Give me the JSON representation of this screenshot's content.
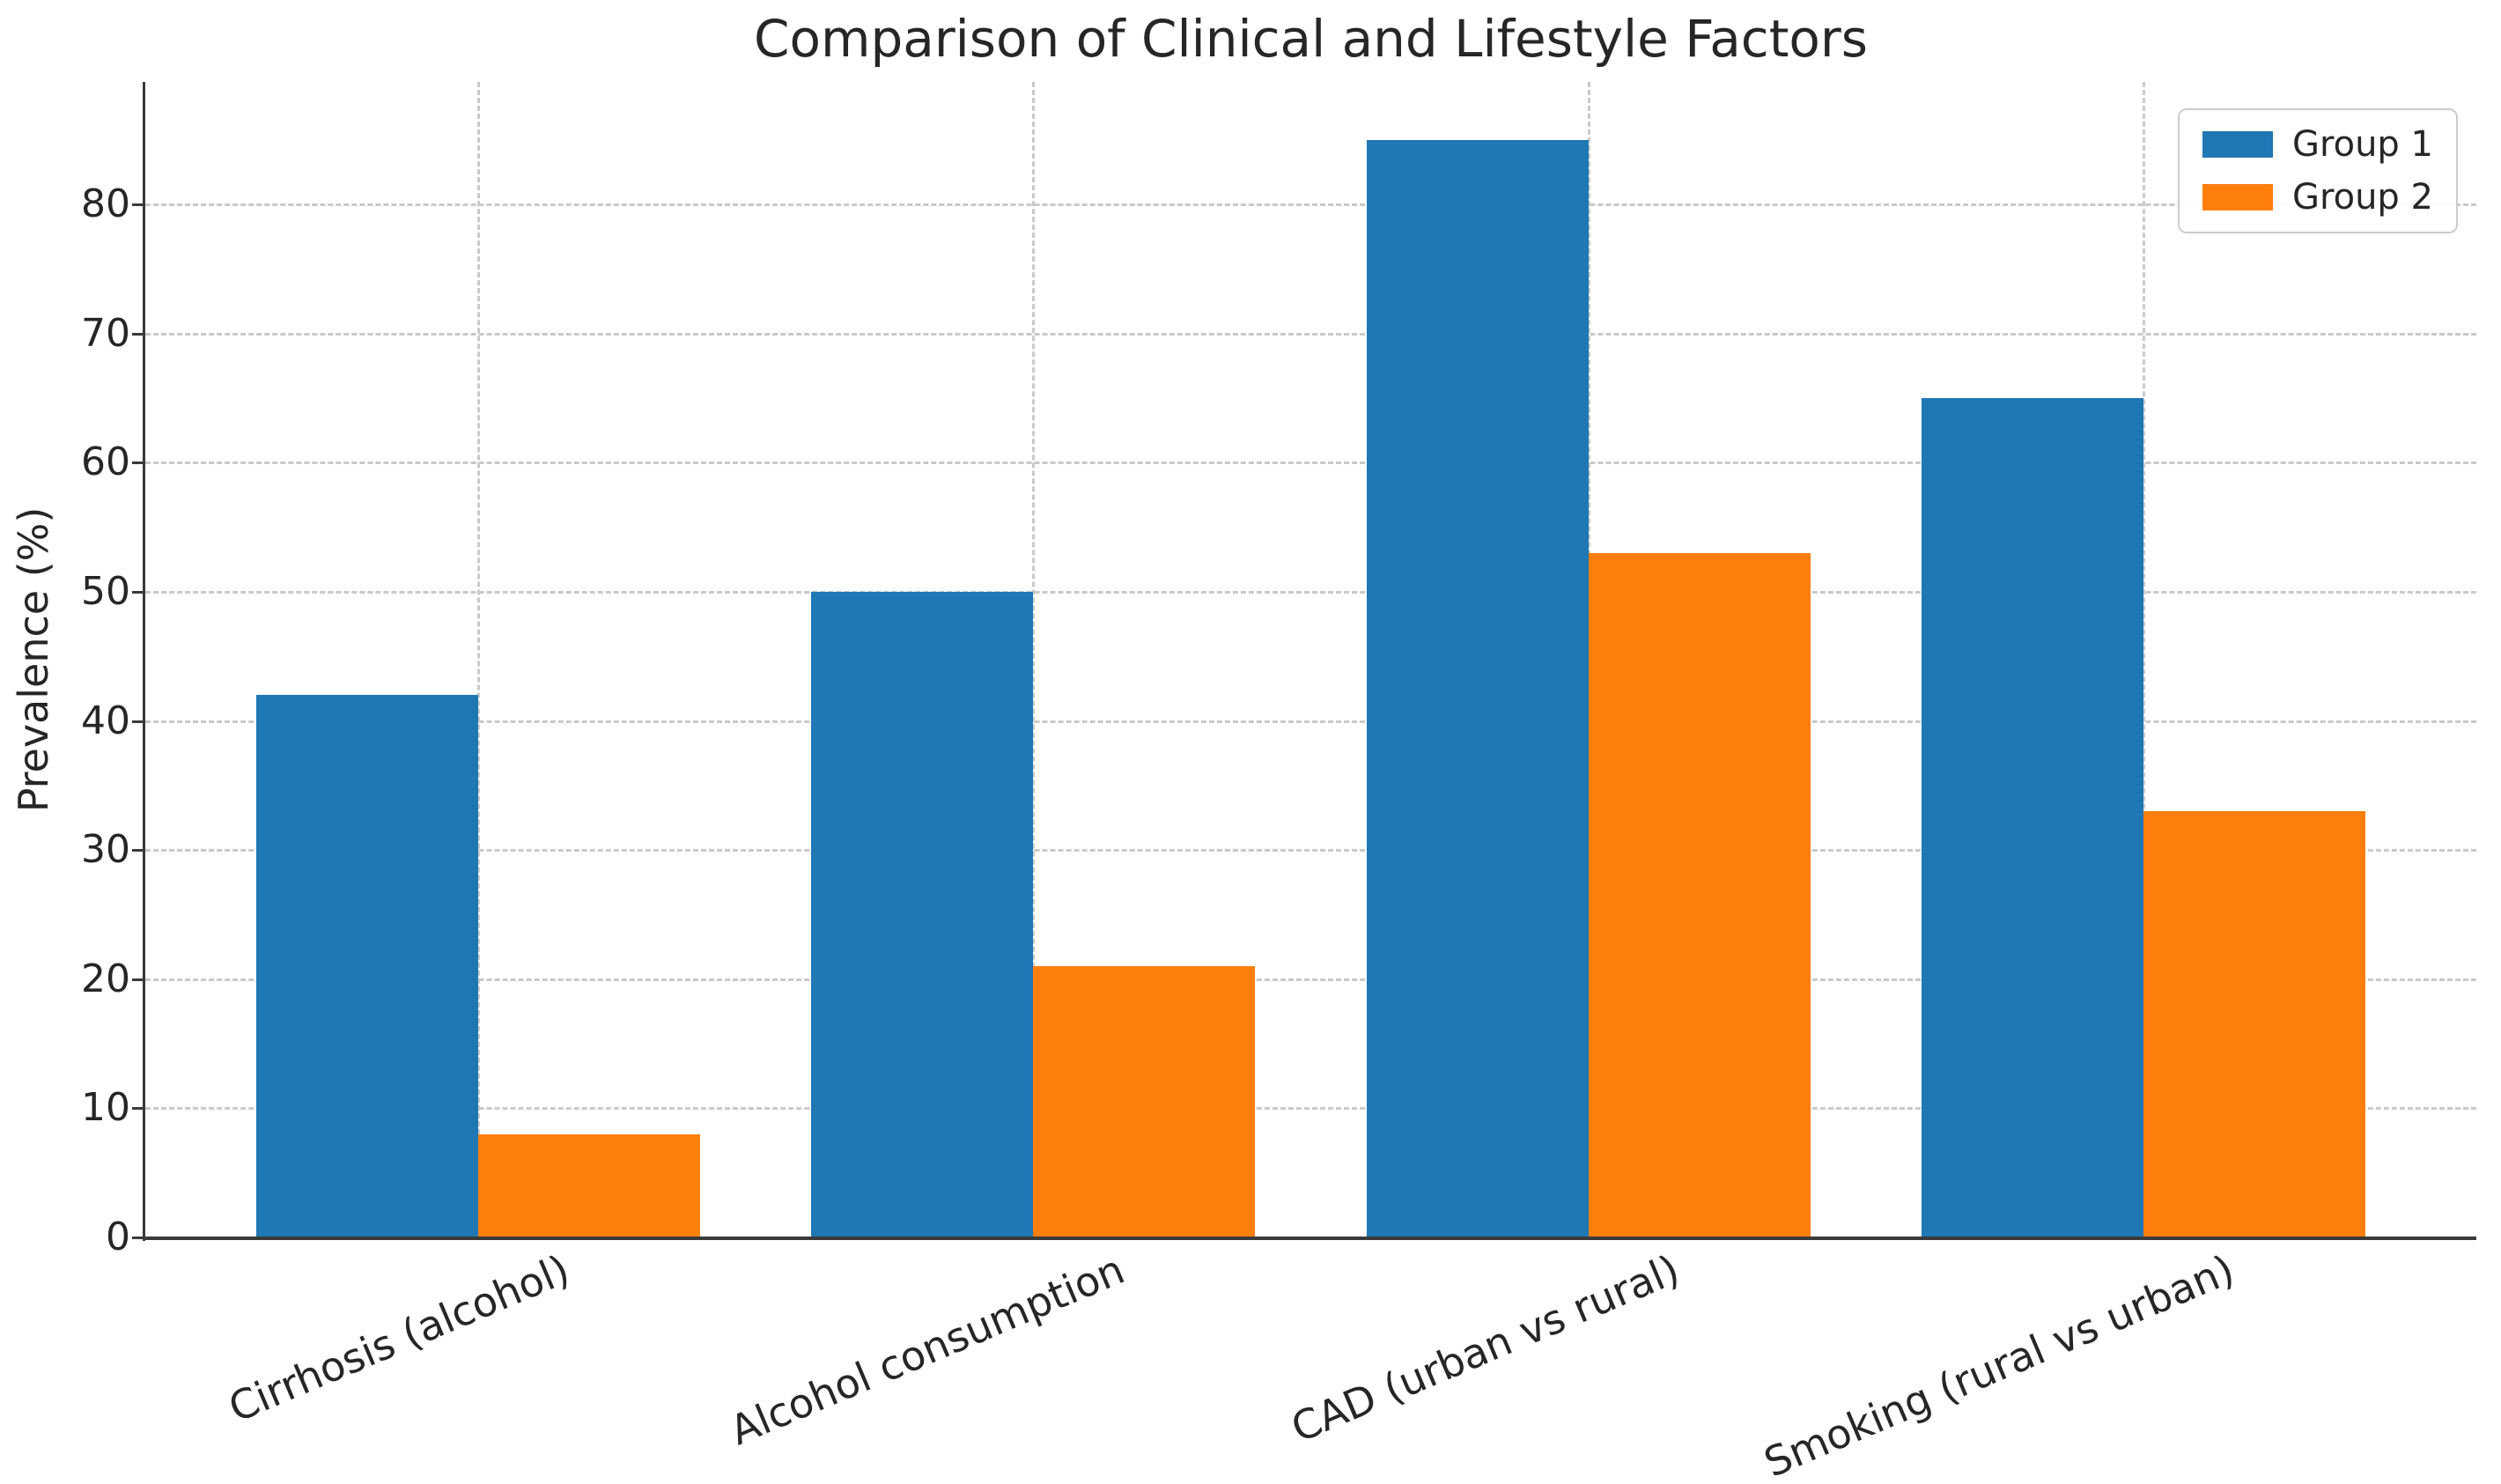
{
  "chart_data": {
    "type": "bar",
    "title": "Comparison of Clinical and Lifestyle Factors",
    "xlabel": "",
    "ylabel": "Prevalence (%)",
    "categories": [
      "Cirrhosis (alcohol)",
      "Alcohol consumption",
      "CAD (urban vs rural)",
      "Smoking (rural vs urban)"
    ],
    "series": [
      {
        "name": "Group 1",
        "color": "#1f77b4",
        "values": [
          42,
          50,
          85,
          65
        ]
      },
      {
        "name": "Group 2",
        "color": "#ff7f0e",
        "values": [
          8,
          21,
          53,
          33
        ]
      }
    ],
    "y_ticks": [
      0,
      10,
      20,
      30,
      40,
      50,
      60,
      70,
      80
    ],
    "ylim": [
      0,
      89.5
    ],
    "grid": true,
    "grid_style": "dashed",
    "legend_position": "top-right",
    "x_tick_rotation_deg": 23,
    "bar_width_units": 0.4
  },
  "colors": {
    "background": "#ffffff",
    "grid": "#c9c9c9",
    "axis": "#3a3a3a",
    "text": "#262626",
    "legend_border": "#cccccc"
  }
}
